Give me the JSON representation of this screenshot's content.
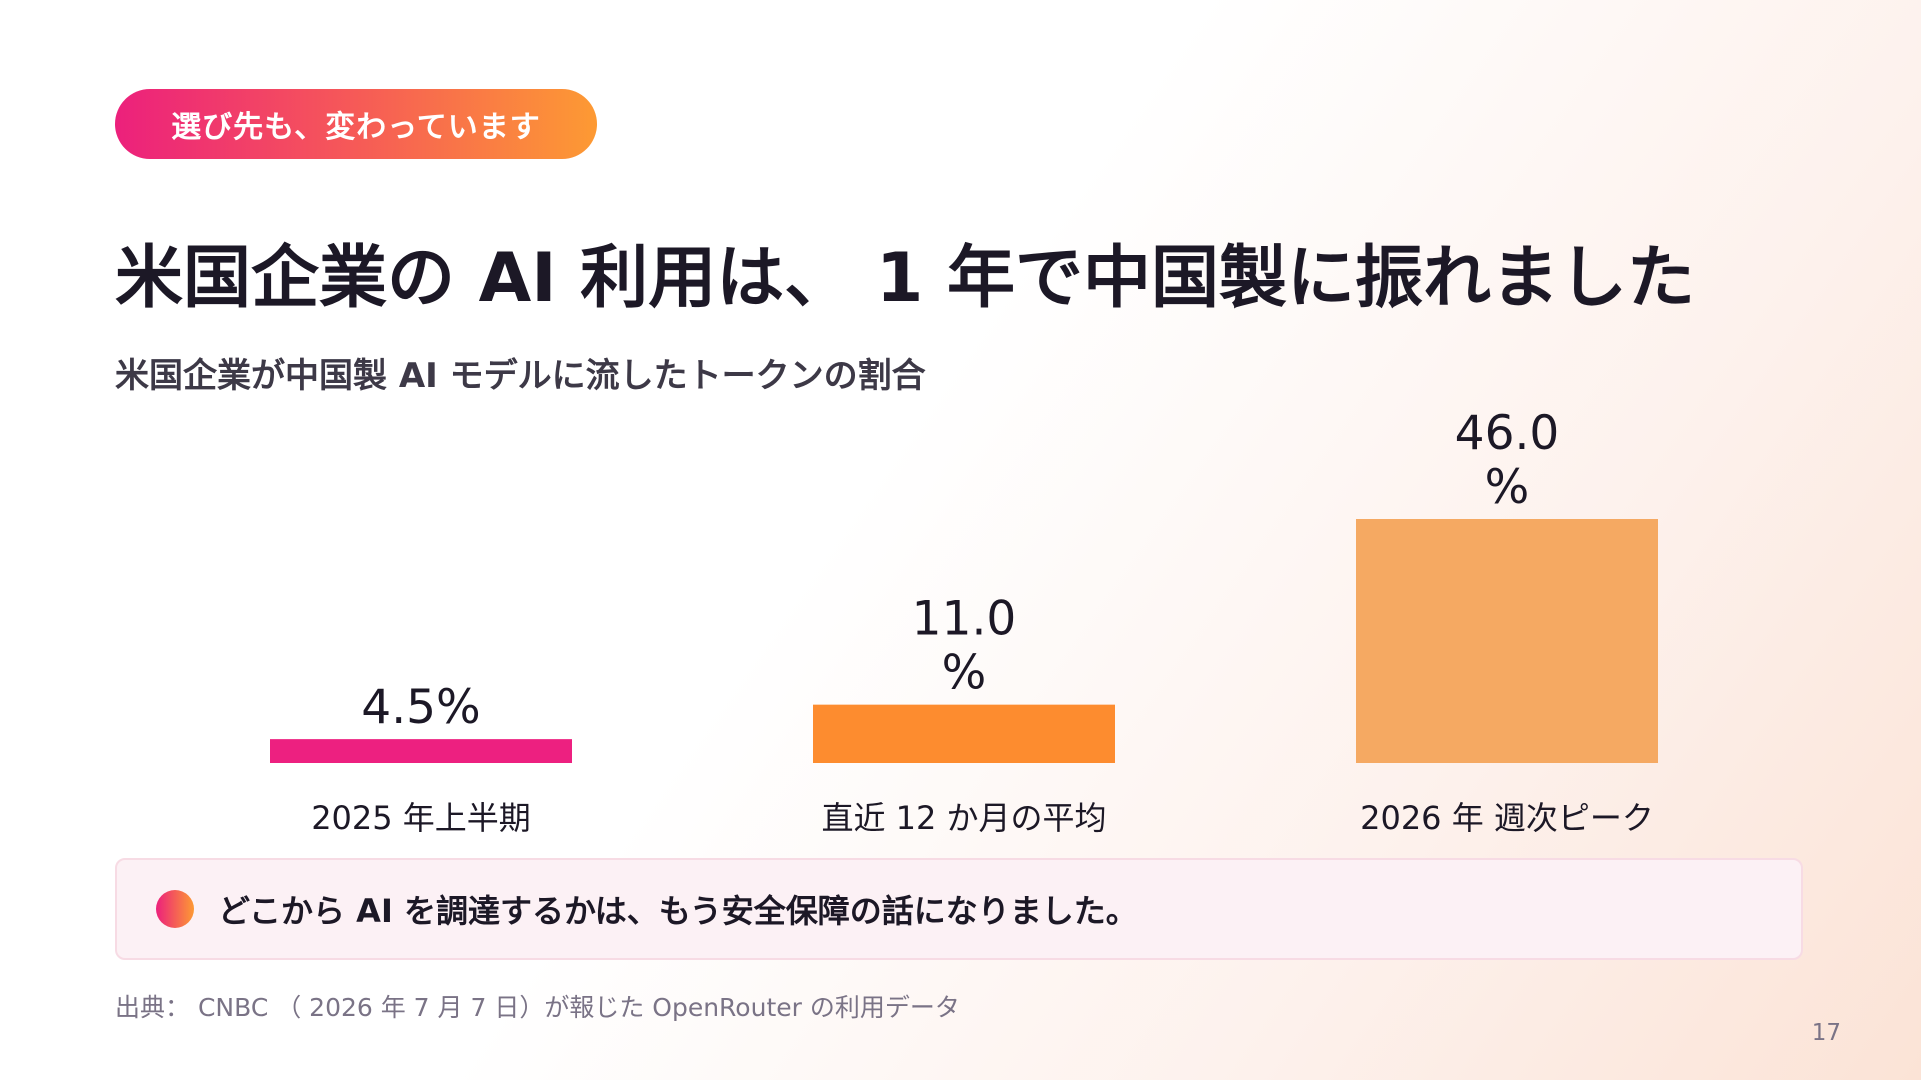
{
  "header": {
    "pill_label": "選び先も、変わっています",
    "title": "米国企業の AI 利用は、 1 年で中国製に振れました",
    "subtitle": "米国企業が中国製 AI モデルに流したトークンの割合"
  },
  "chart_data": {
    "type": "bar",
    "categories": [
      "2025 年上半期",
      "直近 12 か月の平均",
      "2026 年 週次ピーク"
    ],
    "values": [
      4.5,
      11.0,
      46.0
    ],
    "value_labels": [
      [
        "4.5%"
      ],
      [
        "11.0",
        "%"
      ],
      [
        "46.0",
        "%"
      ]
    ],
    "colors": [
      "#ed2080",
      "#fd8c2f",
      "#f5a962"
    ],
    "ylim": [
      0,
      46.0
    ],
    "grid": false,
    "legend": "none"
  },
  "callout": {
    "text": "どこから AI を調達するかは、もう安全保障の話になりました。"
  },
  "footer": {
    "source": "出典： CNBC （ 2026 年 7 月 7 日）が報じた OpenRouter の利用データ",
    "page_number": "17"
  }
}
